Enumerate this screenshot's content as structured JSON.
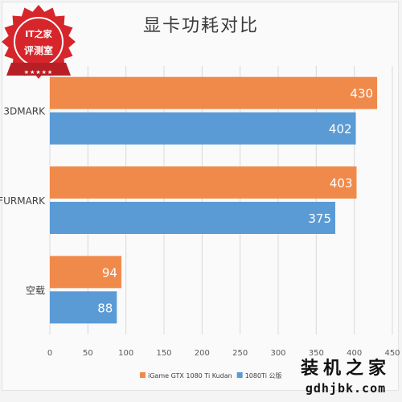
{
  "title": "显卡功耗对比",
  "badge": {
    "line1": "IT之家",
    "line2": "评测室",
    "stars": "★★★★★",
    "color": "#d7262b"
  },
  "watermark": {
    "main": "装机之家",
    "sub": "gdhjbk.com"
  },
  "colors": {
    "series1": "#f08a4b",
    "series2": "#5b9bd5",
    "grid": "#d9d9d9",
    "axis_text": "#595959"
  },
  "chart_data": {
    "type": "bar",
    "orientation": "horizontal",
    "categories": [
      "3DMARK",
      "FURMARK",
      "空载"
    ],
    "series": [
      {
        "name": "iGame GTX 1080 Ti Kudan",
        "values": [
          430,
          403,
          94
        ]
      },
      {
        "name": "1080Ti 公版",
        "values": [
          402,
          375,
          88
        ]
      }
    ],
    "xlim": [
      0,
      450
    ],
    "xticks": [
      0,
      50,
      100,
      150,
      200,
      250,
      300,
      350,
      400,
      450
    ],
    "grid": true,
    "legend": "bottom",
    "data_labels": true
  }
}
